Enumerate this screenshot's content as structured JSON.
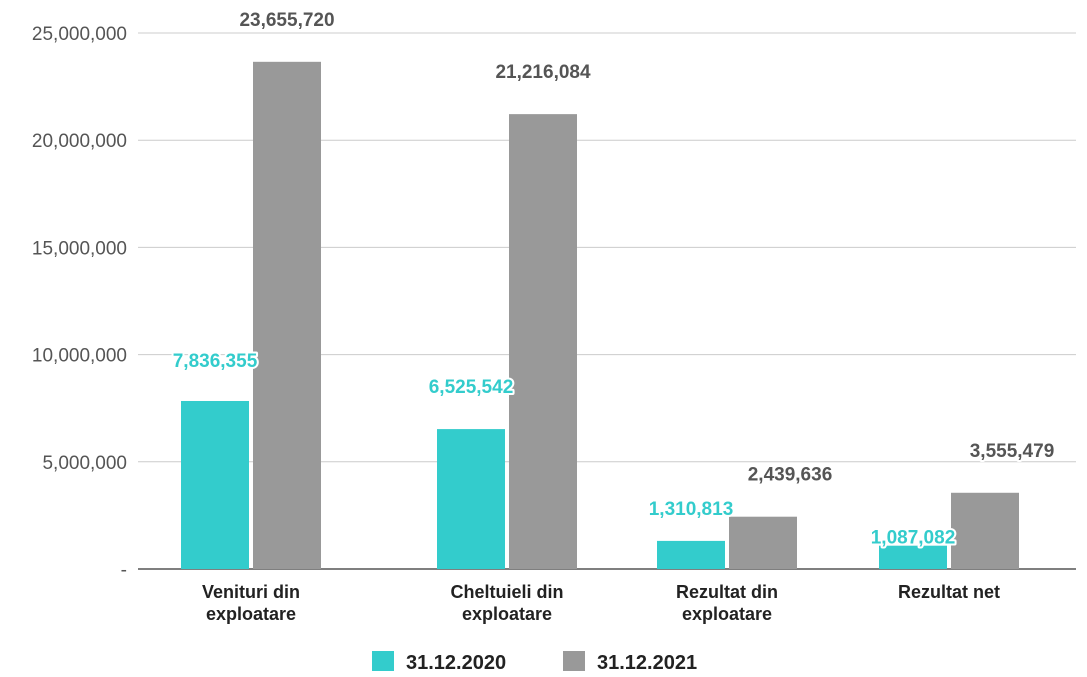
{
  "chart_data": {
    "type": "bar",
    "categories": [
      [
        "Venituri din",
        "exploatare"
      ],
      [
        "Cheltuieli din",
        "exploatare"
      ],
      [
        "Rezultat din",
        "exploatare"
      ],
      [
        "Rezultat net"
      ]
    ],
    "series": [
      {
        "name": "31.12.2020",
        "color": "#33cccc",
        "values": [
          7836355,
          6525542,
          1310813,
          1087082
        ],
        "labels": [
          "7,836,355",
          "6,525,542",
          "1,310,813",
          "1,087,082"
        ]
      },
      {
        "name": "31.12.2021",
        "color": "#999999",
        "values": [
          23655720,
          21216084,
          2439636,
          3555479
        ],
        "labels": [
          "23,655,720",
          "21,216,084",
          "2,439,636",
          "3,555,479"
        ]
      }
    ],
    "ylim": [
      0,
      25000000
    ],
    "yticks": [
      0,
      5000000,
      10000000,
      15000000,
      20000000,
      25000000
    ],
    "ytick_labels": [
      "-",
      "5,000,000",
      "10,000,000",
      "15,000,000",
      "20,000,000",
      "25,000,000"
    ],
    "grid": true,
    "legend_position": "bottom",
    "title": "",
    "xlabel": "",
    "ylabel": ""
  }
}
